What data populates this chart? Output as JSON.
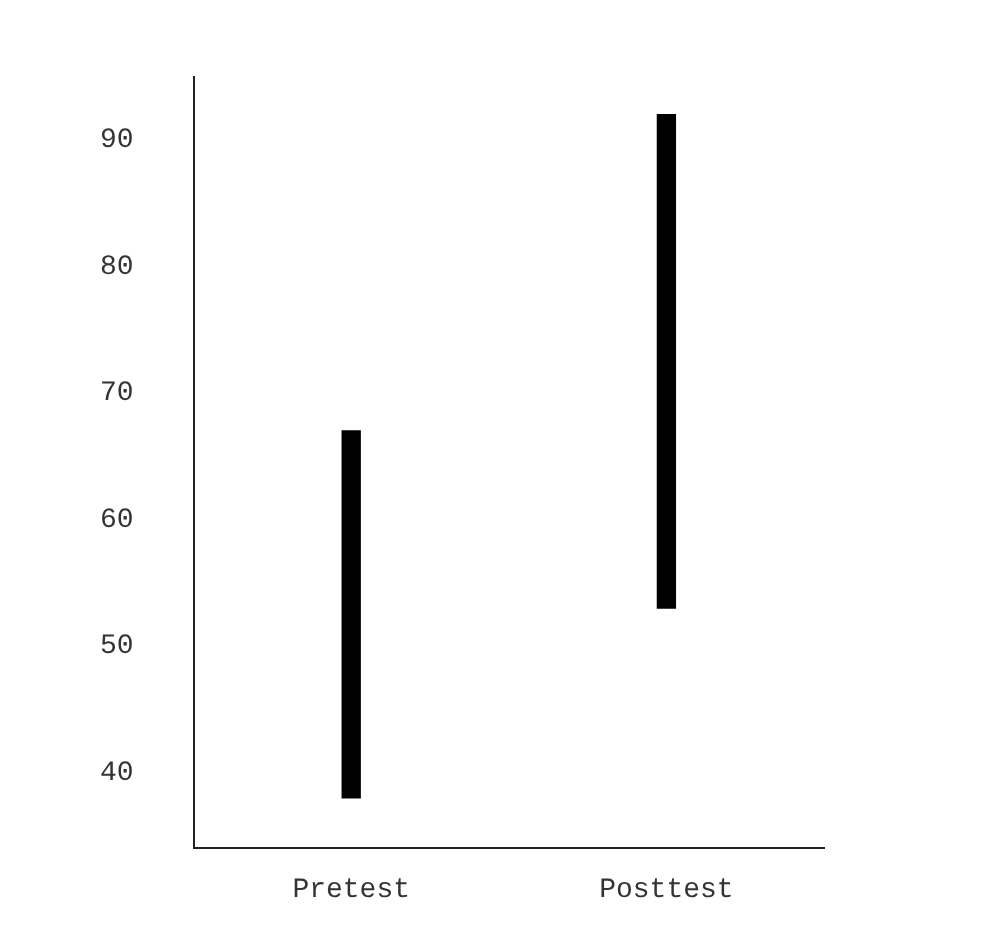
{
  "chart_data": {
    "type": "bar",
    "categories": [
      "Pretest",
      "Posttest"
    ],
    "base": [
      38,
      53
    ],
    "values": [
      29,
      39
    ],
    "color": "#000000",
    "ylim": [
      34,
      95
    ],
    "yticks": [
      40,
      50,
      60,
      70,
      80,
      90
    ],
    "grid": false,
    "legend": false
  }
}
